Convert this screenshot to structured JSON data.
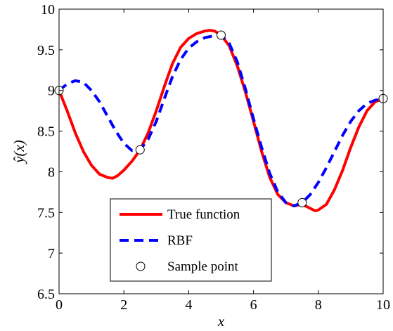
{
  "chart_data": {
    "type": "line",
    "xlabel": "x",
    "ylabel": "ŷ(x)",
    "xlim": [
      0,
      10
    ],
    "ylim": [
      6.5,
      10
    ],
    "xticks": [
      "0",
      "2",
      "4",
      "6",
      "8",
      "10"
    ],
    "yticks": [
      "6.5",
      "7",
      "7.5",
      "8",
      "8.5",
      "9",
      "9.5",
      "10"
    ],
    "grid": false,
    "legend_position": "bottom-center",
    "series": [
      {
        "name": "True function",
        "style": "solid",
        "color": "#ff0000",
        "x": [
          0,
          0.25,
          0.5,
          0.75,
          1.0,
          1.25,
          1.5,
          1.65,
          1.8,
          2.0,
          2.25,
          2.5,
          2.75,
          3.0,
          3.25,
          3.5,
          3.75,
          4.0,
          4.25,
          4.5,
          4.65,
          4.8,
          5.0,
          5.25,
          5.5,
          5.75,
          6.0,
          6.25,
          6.5,
          6.75,
          7.0,
          7.25,
          7.5,
          7.75,
          7.9,
          8.0,
          8.25,
          8.5,
          8.75,
          9.0,
          9.25,
          9.5,
          9.75,
          10.0
        ],
        "y": [
          9.0,
          8.75,
          8.48,
          8.25,
          8.08,
          7.97,
          7.93,
          7.92,
          7.95,
          8.02,
          8.13,
          8.27,
          8.48,
          8.75,
          9.05,
          9.33,
          9.53,
          9.64,
          9.7,
          9.73,
          9.74,
          9.73,
          9.68,
          9.55,
          9.3,
          8.98,
          8.62,
          8.25,
          7.93,
          7.72,
          7.62,
          7.58,
          7.6,
          7.55,
          7.52,
          7.53,
          7.6,
          7.78,
          8.02,
          8.3,
          8.55,
          8.75,
          8.86,
          8.9
        ]
      },
      {
        "name": "RBF",
        "style": "dashed",
        "color": "#0000ff",
        "x": [
          0,
          0.25,
          0.5,
          0.75,
          1.0,
          1.25,
          1.5,
          1.75,
          2.0,
          2.25,
          2.5,
          2.75,
          3.0,
          3.25,
          3.5,
          3.75,
          4.0,
          4.25,
          4.5,
          4.75,
          5.0,
          5.25,
          5.5,
          5.75,
          6.0,
          6.25,
          6.5,
          6.75,
          7.0,
          7.25,
          7.5,
          7.75,
          8.0,
          8.25,
          8.5,
          8.75,
          9.0,
          9.25,
          9.5,
          9.75,
          10.0
        ],
        "y": [
          9.0,
          9.08,
          9.12,
          9.1,
          9.0,
          8.86,
          8.68,
          8.5,
          8.35,
          8.26,
          8.27,
          8.4,
          8.62,
          8.9,
          9.17,
          9.38,
          9.52,
          9.6,
          9.65,
          9.67,
          9.68,
          9.58,
          9.35,
          9.02,
          8.65,
          8.3,
          7.98,
          7.75,
          7.62,
          7.58,
          7.62,
          7.72,
          7.87,
          8.05,
          8.25,
          8.45,
          8.62,
          8.75,
          8.84,
          8.88,
          8.9
        ]
      },
      {
        "name": "Sample point",
        "style": "marker",
        "color": "#ffffff",
        "x": [
          0,
          2.5,
          5.0,
          7.5,
          10.0
        ],
        "y": [
          9.0,
          8.27,
          9.68,
          7.62,
          8.9
        ]
      }
    ]
  }
}
